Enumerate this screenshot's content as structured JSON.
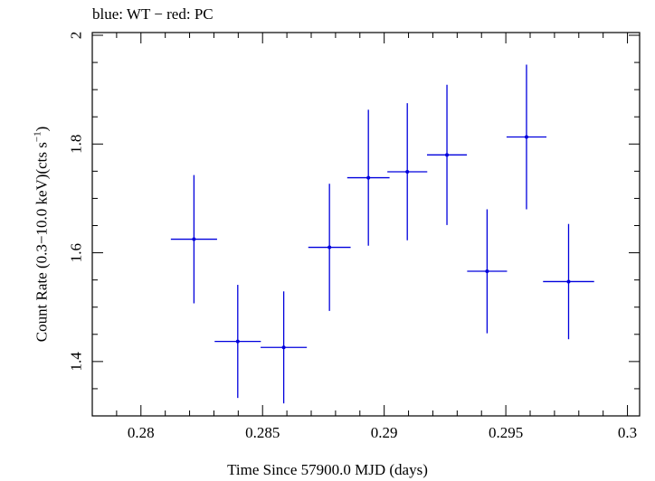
{
  "chart_data": {
    "type": "scatter",
    "title": "blue: WT − red: PC",
    "xlabel": "Time Since 57900.0 MJD (days)",
    "ylabel_main": "Count Rate (0.3−10.0 keV)(cts s",
    "ylabel_sup": "−1",
    "ylabel_end": ")",
    "xlim": [
      0.278,
      0.3005
    ],
    "ylim": [
      1.3,
      2.005
    ],
    "x_ticks": [
      {
        "value": 0.28,
        "label": "0.28"
      },
      {
        "value": 0.285,
        "label": "0.285"
      },
      {
        "value": 0.29,
        "label": "0.29"
      },
      {
        "value": 0.295,
        "label": "0.295"
      },
      {
        "value": 0.3,
        "label": "0.3"
      }
    ],
    "x_minor_step": 0.001,
    "y_ticks": [
      {
        "value": 1.4,
        "label": "1.4"
      },
      {
        "value": 1.6,
        "label": "1.6"
      },
      {
        "value": 1.8,
        "label": "1.8"
      },
      {
        "value": 2.0,
        "label": "2"
      }
    ],
    "y_minor_step": 0.05,
    "grid": false,
    "series": [
      {
        "color": "#0000dd",
        "points": [
          {
            "x": 0.28218,
            "xerr": 0.00095,
            "y": 1.625,
            "yerr": 0.118
          },
          {
            "x": 0.28398,
            "xerr": 0.00095,
            "y": 1.437,
            "yerr": 0.104
          },
          {
            "x": 0.28587,
            "xerr": 0.00095,
            "y": 1.426,
            "yerr": 0.103
          },
          {
            "x": 0.28775,
            "xerr": 0.00087,
            "y": 1.61,
            "yerr": 0.117
          },
          {
            "x": 0.28935,
            "xerr": 0.00087,
            "y": 1.738,
            "yerr": 0.125
          },
          {
            "x": 0.29095,
            "xerr": 0.00082,
            "y": 1.749,
            "yerr": 0.126
          },
          {
            "x": 0.29258,
            "xerr": 0.00082,
            "y": 1.78,
            "yerr": 0.129
          },
          {
            "x": 0.29423,
            "xerr": 0.00082,
            "y": 1.566,
            "yerr": 0.114
          },
          {
            "x": 0.29585,
            "xerr": 0.00082,
            "y": 1.813,
            "yerr": 0.133
          },
          {
            "x": 0.29758,
            "xerr": 0.00105,
            "y": 1.547,
            "yerr": 0.106
          }
        ]
      }
    ]
  }
}
